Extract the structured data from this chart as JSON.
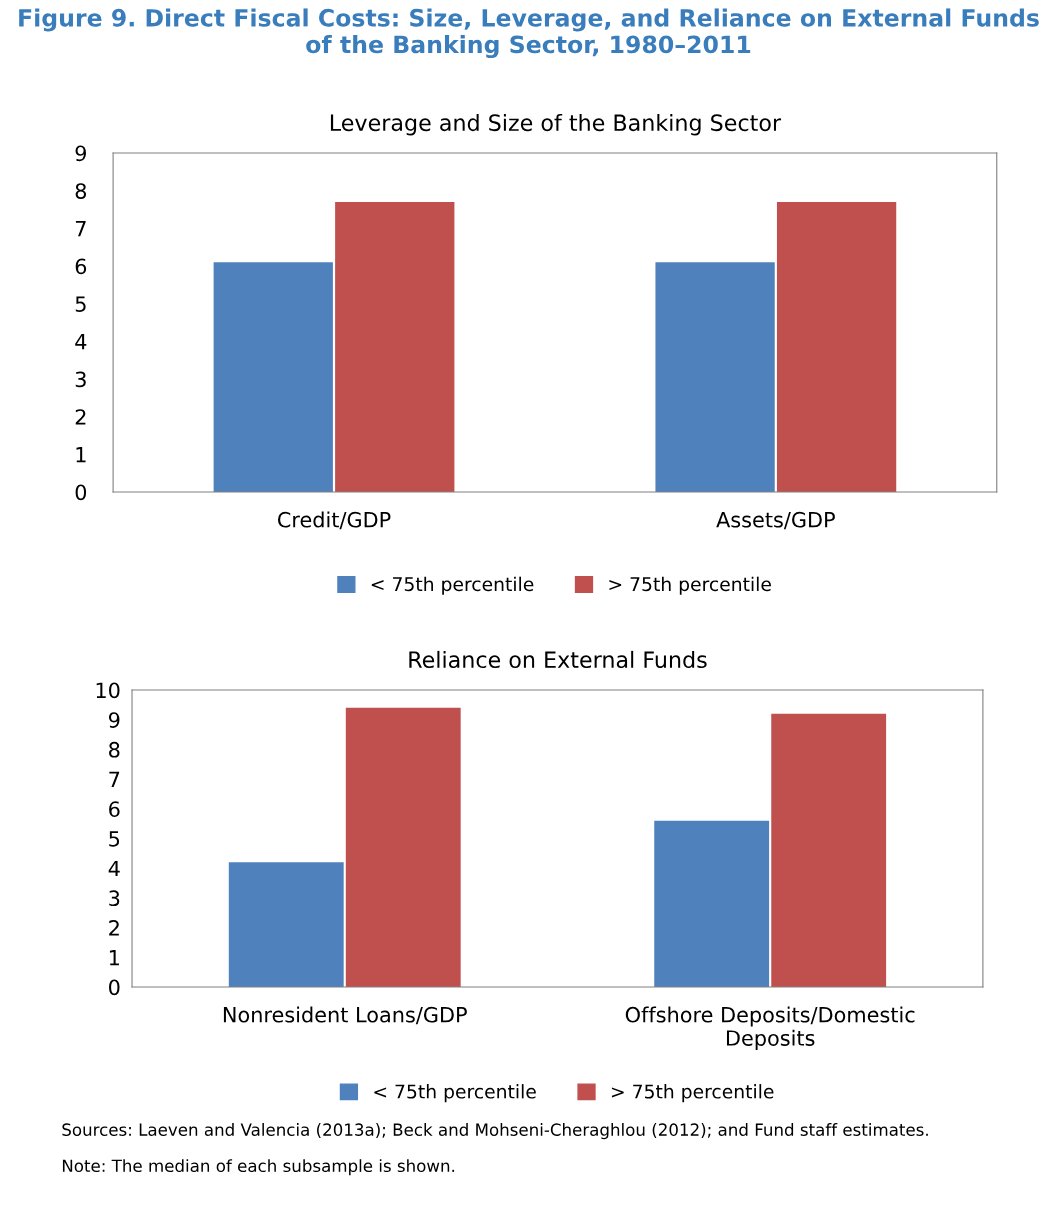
{
  "chart_data": [
    {
      "type": "bar",
      "title": "Figure 9. Direct Fiscal Costs: Size, Leverage, and Reliance on External Funds of the Banking Sector, 1980–2011",
      "subtitle": "Leverage and Size of the Banking Sector",
      "categories": [
        "Credit/GDP",
        "Assets/GDP"
      ],
      "series": [
        {
          "name": "< 75th percentile",
          "color": "#4f81bd",
          "values": [
            6.1,
            6.1
          ]
        },
        {
          "name": "> 75th percentile",
          "color": "#c0504d",
          "values": [
            7.7,
            7.7
          ]
        }
      ],
      "ylim": [
        0,
        9
      ],
      "yticks": [
        0,
        1,
        2,
        3,
        4,
        5,
        6,
        7,
        8,
        9
      ],
      "grid": false,
      "legend": "bottom"
    },
    {
      "type": "bar",
      "subtitle": "Reliance on External Funds",
      "categories": [
        "Nonresident Loans/GDP",
        "Offshore Deposits/Domestic\nDeposits"
      ],
      "series": [
        {
          "name": "< 75th percentile",
          "color": "#4f81bd",
          "values": [
            4.2,
            5.6
          ]
        },
        {
          "name": "> 75th percentile",
          "color": "#c0504d",
          "values": [
            9.4,
            9.2
          ]
        }
      ],
      "ylim": [
        0,
        10
      ],
      "yticks": [
        0,
        1,
        2,
        3,
        4,
        5,
        6,
        7,
        8,
        9,
        10
      ],
      "grid": false,
      "legend": "bottom",
      "annotations": [
        "Sources: Laeven and Valencia (2013a); Beck and Mohseni-Cheraghlou (2012); and Fund staff estimates.",
        "Note: The median of each subsample is shown."
      ]
    }
  ]
}
